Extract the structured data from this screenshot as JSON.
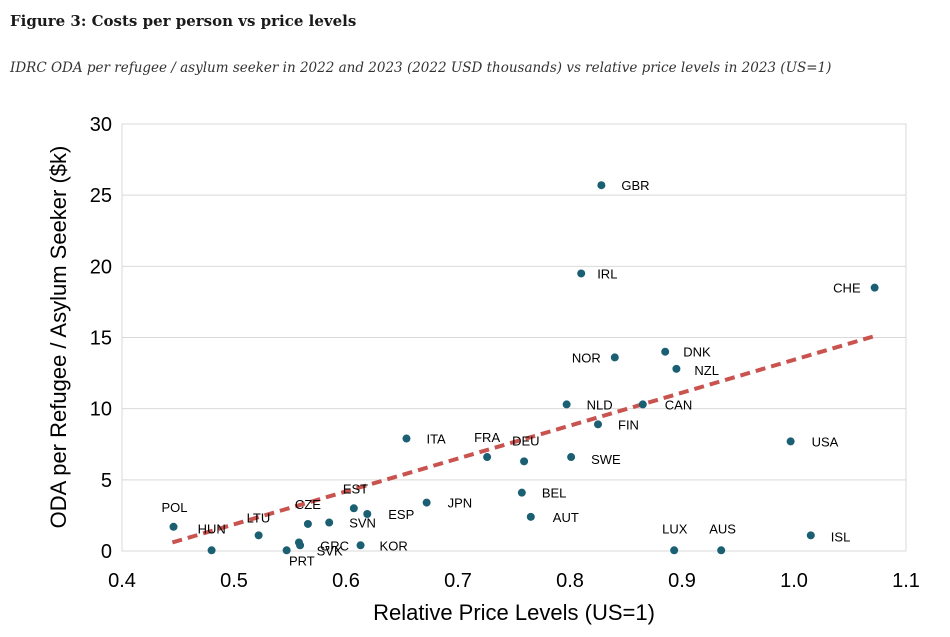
{
  "figure": {
    "title": "Figure 3: Costs per person vs price levels",
    "subtitle": "IDRC ODA per refugee / asylum seeker in 2022 and 2023 (2022 USD thousands) vs relative price levels in 2023 (US=1)"
  },
  "chart_data": {
    "type": "scatter",
    "xlabel": "Relative Price Levels (US=1)",
    "ylabel": "ODA per Refugee / Asylum Seeker ($k)",
    "xlim": [
      0.4,
      1.1
    ],
    "ylim": [
      0,
      30
    ],
    "xticks": [
      "0.4",
      "0.5",
      "0.6",
      "0.7",
      "0.8",
      "0.9",
      "1.0",
      "1.1"
    ],
    "yticks": [
      "0",
      "5",
      "10",
      "15",
      "20",
      "25",
      "30"
    ],
    "grid": "horizontal",
    "point_color": "#1b5f73",
    "trendline": {
      "style": "dashed",
      "color": "#c9534f",
      "start": [
        0.445,
        0.6
      ],
      "end": [
        1.072,
        15.1
      ]
    },
    "points": [
      {
        "label": "GBR",
        "x": 0.828,
        "y": 25.7
      },
      {
        "label": "IRL",
        "x": 0.81,
        "y": 19.5
      },
      {
        "label": "CHE",
        "x": 1.072,
        "y": 18.5
      },
      {
        "label": "NOR",
        "x": 0.84,
        "y": 13.6
      },
      {
        "label": "DNK",
        "x": 0.885,
        "y": 14.0
      },
      {
        "label": "NZL",
        "x": 0.895,
        "y": 12.8
      },
      {
        "label": "NLD",
        "x": 0.797,
        "y": 10.3
      },
      {
        "label": "CAN",
        "x": 0.865,
        "y": 10.3
      },
      {
        "label": "FIN",
        "x": 0.825,
        "y": 8.9
      },
      {
        "label": "ITA",
        "x": 0.654,
        "y": 7.9
      },
      {
        "label": "FRA",
        "x": 0.726,
        "y": 6.6
      },
      {
        "label": "DEU",
        "x": 0.759,
        "y": 6.3
      },
      {
        "label": "SWE",
        "x": 0.801,
        "y": 6.6
      },
      {
        "label": "USA",
        "x": 0.997,
        "y": 7.7
      },
      {
        "label": "BEL",
        "x": 0.757,
        "y": 4.1
      },
      {
        "label": "AUT",
        "x": 0.765,
        "y": 2.4
      },
      {
        "label": "JPN",
        "x": 0.672,
        "y": 3.4
      },
      {
        "label": "EST",
        "x": 0.607,
        "y": 3.0
      },
      {
        "label": "ESP",
        "x": 0.619,
        "y": 2.6
      },
      {
        "label": "SVN",
        "x": 0.585,
        "y": 2.0
      },
      {
        "label": "CZE",
        "x": 0.566,
        "y": 1.9
      },
      {
        "label": "LTU",
        "x": 0.522,
        "y": 1.1
      },
      {
        "label": "POL",
        "x": 0.446,
        "y": 1.7
      },
      {
        "label": "HUN",
        "x": 0.48,
        "y": 0.05
      },
      {
        "label": "SVK",
        "x": 0.547,
        "y": 0.05
      },
      {
        "label": "PRT",
        "x": 0.558,
        "y": 0.6
      },
      {
        "label": "GRC",
        "x": 0.559,
        "y": 0.4
      },
      {
        "label": "KOR",
        "x": 0.613,
        "y": 0.4
      },
      {
        "label": "LUX",
        "x": 0.893,
        "y": 0.05
      },
      {
        "label": "AUS",
        "x": 0.935,
        "y": 0.05
      },
      {
        "label": "ISL",
        "x": 1.015,
        "y": 1.1
      }
    ]
  }
}
